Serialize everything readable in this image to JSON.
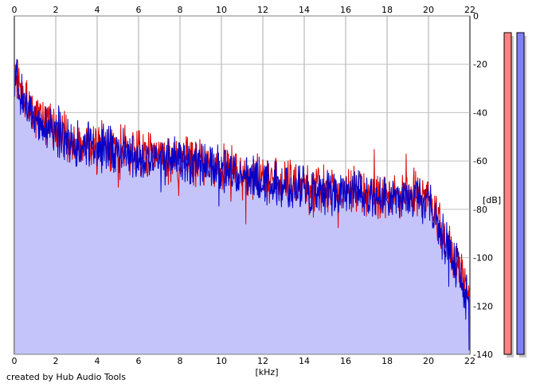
{
  "chart_data": {
    "type": "area",
    "xlabel": "[kHz]",
    "ylabel": "[dB]",
    "xlim": [
      0,
      22
    ],
    "ylim": [
      -140,
      0
    ],
    "x_ticks": [
      "0",
      "2",
      "4",
      "6",
      "8",
      "10",
      "12",
      "14",
      "16",
      "18",
      "20",
      "22"
    ],
    "y_ticks": [
      "0",
      "-20",
      "-40",
      "-60",
      "-80",
      "-100",
      "-120",
      "-140"
    ],
    "grid": true,
    "series": [
      {
        "color": "#dd0000",
        "x": [
          0,
          0.5,
          1,
          1.5,
          2,
          2.5,
          3,
          3.5,
          4,
          4.5,
          5,
          5.5,
          6,
          6.5,
          7,
          7.5,
          8,
          8.5,
          9,
          9.5,
          10,
          10.5,
          11,
          11.5,
          12,
          12.5,
          13,
          13.5,
          14,
          14.5,
          15,
          15.5,
          16,
          16.5,
          17,
          17.5,
          18,
          18.5,
          19,
          19.5,
          20,
          20.5,
          21,
          21.5,
          22
        ],
        "values": [
          -22,
          -34,
          -40,
          -44,
          -47,
          -50,
          -52,
          -53,
          -53,
          -54,
          -55,
          -56,
          -57,
          -58,
          -58,
          -59,
          -59,
          -60,
          -61,
          -62,
          -63,
          -64,
          -66,
          -67,
          -67,
          -68,
          -69,
          -70,
          -70,
          -71,
          -71,
          -72,
          -72,
          -72,
          -73,
          -73,
          -74,
          -74,
          -73,
          -73,
          -75,
          -85,
          -96,
          -105,
          -117
        ]
      },
      {
        "color": "#0000cc",
        "x": [
          0,
          0.5,
          1,
          1.5,
          2,
          2.5,
          3,
          3.5,
          4,
          4.5,
          5,
          5.5,
          6,
          6.5,
          7,
          7.5,
          8,
          8.5,
          9,
          9.5,
          10,
          10.5,
          11,
          11.5,
          12,
          12.5,
          13,
          13.5,
          14,
          14.5,
          15,
          15.5,
          16,
          16.5,
          17,
          17.5,
          18,
          18.5,
          19,
          19.5,
          20,
          20.5,
          21,
          21.5,
          22
        ],
        "values": [
          -24,
          -36,
          -42,
          -46,
          -49,
          -51,
          -53,
          -54,
          -54,
          -55,
          -56,
          -57,
          -58,
          -59,
          -59,
          -60,
          -60,
          -61,
          -62,
          -63,
          -64,
          -65,
          -67,
          -68,
          -68,
          -69,
          -70,
          -71,
          -71,
          -72,
          -72,
          -73,
          -73,
          -73,
          -74,
          -74,
          -75,
          -75,
          -75,
          -76,
          -77,
          -87,
          -98,
          -107,
          -120
        ]
      }
    ],
    "level_meters": [
      {
        "color": "#ff8080",
        "level": 1.0
      },
      {
        "color": "#8080ff",
        "level": 1.0
      }
    ]
  },
  "footer": {
    "credit": "created by Hub Audio Tools"
  }
}
